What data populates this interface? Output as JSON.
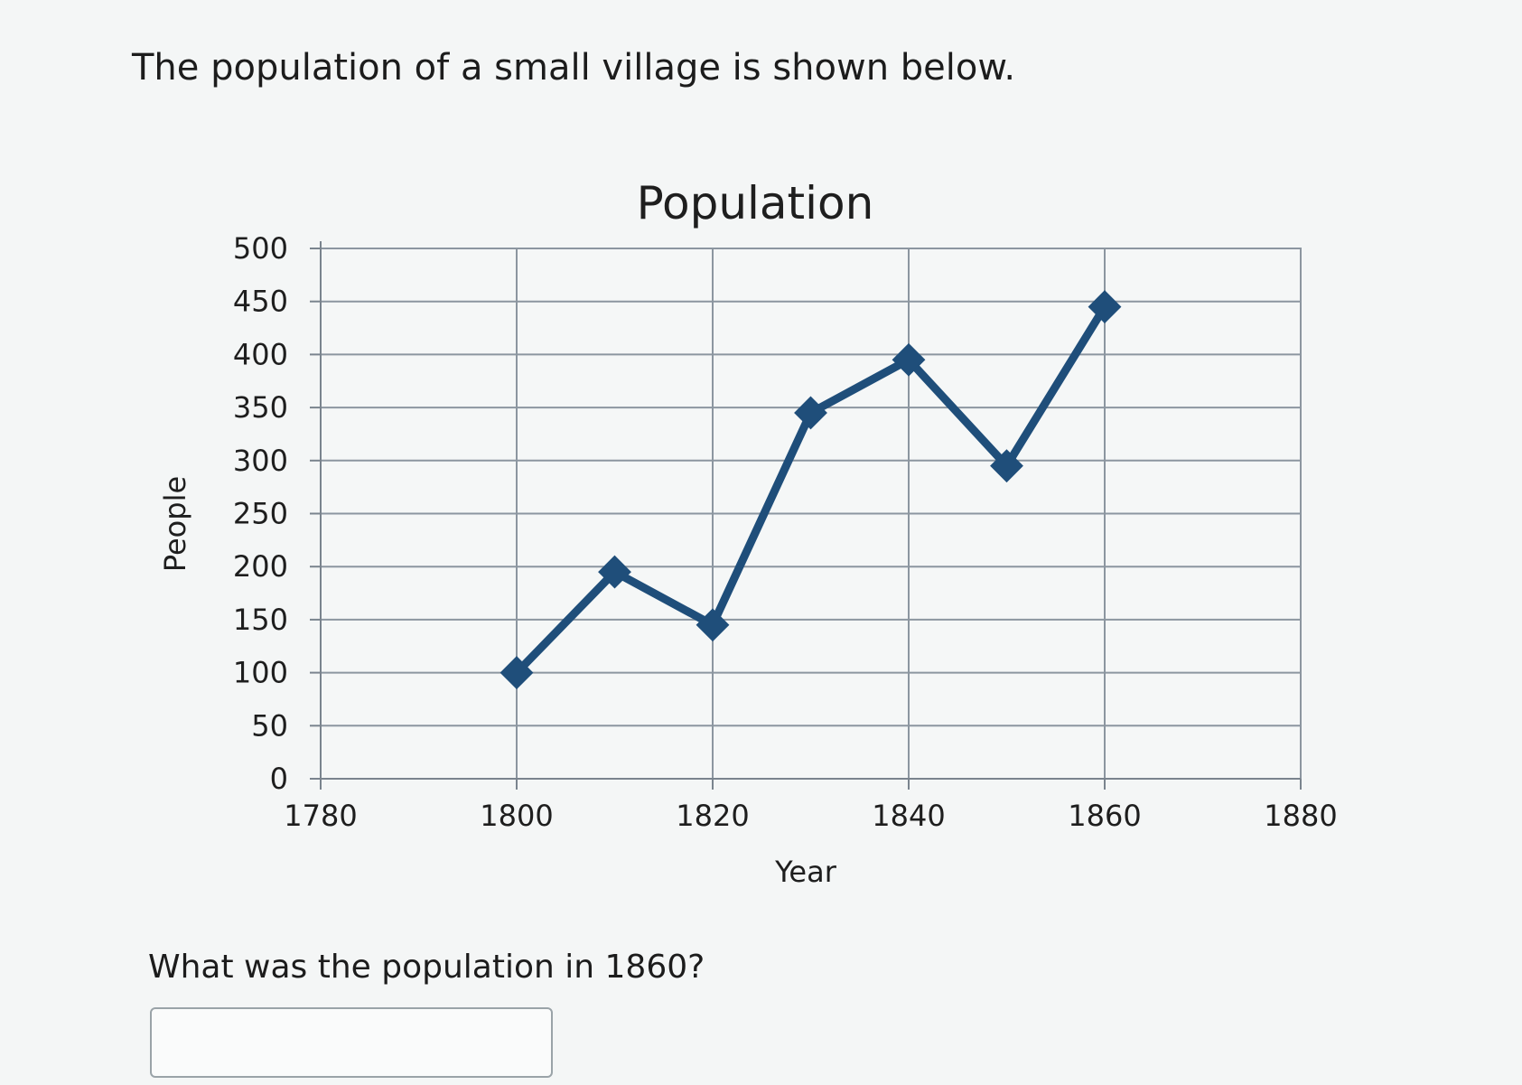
{
  "question": {
    "text": "The population of a small village is shown below.",
    "prompt": "What was the population in 1860?",
    "answer_value": ""
  },
  "chart_data": {
    "type": "line",
    "title": "Population",
    "xlabel": "Year",
    "ylabel": "People",
    "xlim": [
      1780,
      1880
    ],
    "ylim": [
      0,
      500
    ],
    "x_ticks": [
      1780,
      1800,
      1820,
      1840,
      1860,
      1880
    ],
    "y_ticks": [
      0,
      50,
      100,
      150,
      200,
      250,
      300,
      350,
      400,
      450,
      500
    ],
    "grid": true,
    "series": [
      {
        "x": [
          1800,
          1810,
          1820,
          1830,
          1840,
          1850,
          1860
        ],
        "y": [
          100,
          195,
          145,
          345,
          395,
          295,
          445
        ],
        "color": "#1f4e7a",
        "marker": "diamond"
      }
    ]
  }
}
